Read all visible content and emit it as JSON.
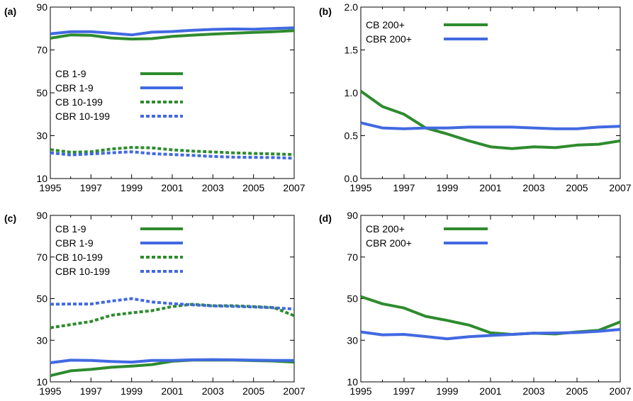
{
  "chart_data": [
    {
      "type": "line",
      "panel_label": "(a)",
      "x": [
        1995,
        1996,
        1997,
        1998,
        1999,
        2000,
        2001,
        2002,
        2003,
        2004,
        2005,
        2006,
        2007
      ],
      "xticks": [
        1995,
        1997,
        1999,
        2001,
        2003,
        2005,
        2007
      ],
      "xlim": [
        1995,
        2007
      ],
      "ylim": [
        10,
        90
      ],
      "yticks": [
        "10",
        "30",
        "50",
        "70",
        "90"
      ],
      "legend_position": "middle-left",
      "series": [
        {
          "name": "CB 1-9",
          "color": "#2e8b2e",
          "style": "solid",
          "values": [
            75.5,
            77,
            76.8,
            75.6,
            75.1,
            75.3,
            76.3,
            76.9,
            77.4,
            77.8,
            78.2,
            78.5,
            79
          ]
        },
        {
          "name": "CBR 1-9",
          "color": "#4169e1",
          "style": "solid",
          "values": [
            77.5,
            78.5,
            78.5,
            77.8,
            77,
            78.3,
            78.6,
            79.2,
            79.6,
            79.8,
            79.7,
            80,
            80.3
          ]
        },
        {
          "name": "CB 10-199",
          "color": "#2e8b2e",
          "style": "dashed",
          "values": [
            23.5,
            22.3,
            22.5,
            23.8,
            24.5,
            24.3,
            23.4,
            22.8,
            22.4,
            22,
            21.7,
            21.5,
            21.2
          ]
        },
        {
          "name": "CBR 10-199",
          "color": "#4169e1",
          "style": "dashed",
          "values": [
            22,
            21,
            21.5,
            22,
            22.5,
            21.6,
            21.2,
            20.8,
            20.3,
            20,
            19.9,
            19.8,
            19.5
          ]
        }
      ]
    },
    {
      "type": "line",
      "panel_label": "(b)",
      "x": [
        1995,
        1996,
        1997,
        1998,
        1999,
        2000,
        2001,
        2002,
        2003,
        2004,
        2005,
        2006,
        2007
      ],
      "xticks": [
        1995,
        1997,
        1999,
        2001,
        2003,
        2005,
        2007
      ],
      "xlim": [
        1995,
        2007
      ],
      "ylim": [
        0,
        2
      ],
      "yticks": [
        "0.0",
        "0.5",
        "1.0",
        "1.5",
        "2.0"
      ],
      "legend_position": "top-left",
      "series": [
        {
          "name": "CB 200+",
          "color": "#2e8b2e",
          "style": "solid",
          "values": [
            1.02,
            0.84,
            0.75,
            0.59,
            0.52,
            0.44,
            0.37,
            0.35,
            0.37,
            0.36,
            0.39,
            0.4,
            0.44
          ]
        },
        {
          "name": "CBR 200+",
          "color": "#4169e1",
          "style": "solid",
          "values": [
            0.65,
            0.59,
            0.58,
            0.59,
            0.59,
            0.6,
            0.6,
            0.6,
            0.59,
            0.58,
            0.58,
            0.6,
            0.61
          ]
        }
      ]
    },
    {
      "type": "line",
      "panel_label": "(c)",
      "x": [
        1995,
        1996,
        1997,
        1998,
        1999,
        2000,
        2001,
        2002,
        2003,
        2004,
        2005,
        2006,
        2007
      ],
      "xticks": [
        1995,
        1997,
        1999,
        2001,
        2003,
        2005,
        2007
      ],
      "xlim": [
        1995,
        2007
      ],
      "ylim": [
        10,
        90
      ],
      "yticks": [
        "10",
        "30",
        "50",
        "70",
        "90"
      ],
      "legend_position": "top-left",
      "series": [
        {
          "name": "CB 1-9",
          "color": "#2e8b2e",
          "style": "solid",
          "values": [
            13,
            15.3,
            16,
            17,
            17.6,
            18.3,
            19.9,
            20.5,
            20.5,
            20.5,
            20.2,
            20,
            19.5
          ]
        },
        {
          "name": "CBR 1-9",
          "color": "#4169e1",
          "style": "solid",
          "values": [
            19.2,
            20.4,
            20.3,
            19.8,
            19.5,
            20.3,
            20.3,
            20.6,
            20.7,
            20.6,
            20.4,
            20.3,
            20.3
          ]
        },
        {
          "name": "CB 10-199",
          "color": "#2e8b2e",
          "style": "dashed",
          "values": [
            36,
            37.5,
            39,
            42,
            43.2,
            44.2,
            46.2,
            47.3,
            46.6,
            46.6,
            46.2,
            45.7,
            41.8
          ]
        },
        {
          "name": "CBR 10-199",
          "color": "#4169e1",
          "style": "dashed",
          "values": [
            47.3,
            47.4,
            47.4,
            48.8,
            50,
            48.4,
            47.6,
            47,
            46.5,
            46.3,
            46,
            45.6,
            45
          ]
        }
      ]
    },
    {
      "type": "line",
      "panel_label": "(d)",
      "x": [
        1995,
        1996,
        1997,
        1998,
        1999,
        2000,
        2001,
        2002,
        2003,
        2004,
        2005,
        2006,
        2007
      ],
      "xticks": [
        1995,
        1997,
        1999,
        2001,
        2003,
        2005,
        2007
      ],
      "xlim": [
        1995,
        2007
      ],
      "ylim": [
        10,
        90
      ],
      "yticks": [
        "10",
        "30",
        "50",
        "70",
        "90"
      ],
      "legend_position": "top-left",
      "series": [
        {
          "name": "CB 200+",
          "color": "#2e8b2e",
          "style": "solid",
          "values": [
            51,
            47.5,
            45.5,
            41.5,
            39.5,
            37.3,
            33.6,
            32.8,
            33.4,
            33,
            34,
            34.8,
            38.8
          ]
        },
        {
          "name": "CBR 200+",
          "color": "#4169e1",
          "style": "solid",
          "values": [
            34,
            32.6,
            32.8,
            31.8,
            30.7,
            31.7,
            32.3,
            32.8,
            33.4,
            33.5,
            33.7,
            34.3,
            35.2
          ]
        }
      ]
    }
  ]
}
